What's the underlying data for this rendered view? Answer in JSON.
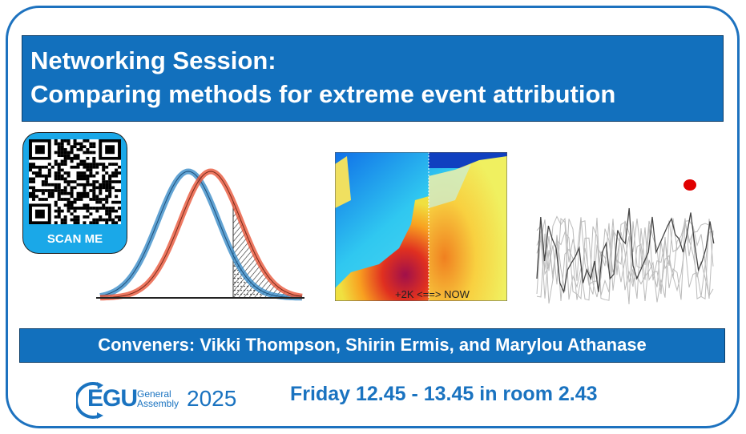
{
  "title": {
    "line1": "Networking Session:",
    "line2": "Comparing methods for extreme event attribution"
  },
  "qr": {
    "label": "SCAN ME",
    "icon": "qr-code-icon"
  },
  "map": {
    "caption": "+2K <==> NOW"
  },
  "conveners": "Conveners: Vikki Thompson, Shirin Ermis, and Marylou Athanase",
  "logo": {
    "main": "EGU",
    "sub1": "General",
    "sub2": "Assembly",
    "year": "2025"
  },
  "schedule": "Friday 12.45 - 13.45 in room 2.43",
  "colors": {
    "brand_blue": "#1270bd",
    "qr_blue": "#1aa8e8",
    "curve_blue": "#3a8cc8",
    "curve_red": "#e8563a",
    "highlight": "#e00000"
  }
}
